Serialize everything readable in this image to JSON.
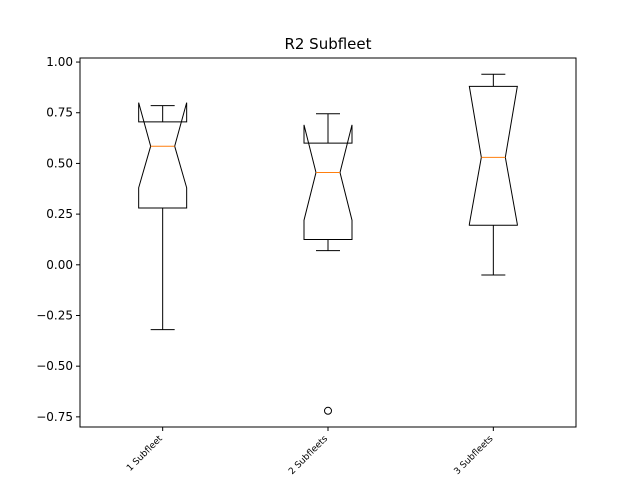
{
  "chart_data": {
    "type": "boxplot",
    "title": "R2 Subfleet",
    "xlabel": "",
    "ylabel": "",
    "notched": true,
    "ylim": [
      -0.8,
      1.02
    ],
    "yticks": [
      -0.75,
      -0.5,
      -0.25,
      0.0,
      0.25,
      0.5,
      0.75,
      1.0
    ],
    "ytick_labels": [
      "−0.75",
      "−0.50",
      "−0.25",
      "0.00",
      "0.25",
      "0.50",
      "0.75",
      "1.00"
    ],
    "categories": [
      "1 Subfleet",
      "2 Subfleets",
      "3 Subfleets"
    ],
    "boxes": [
      {
        "whisker_low": -0.32,
        "q1": 0.28,
        "median": 0.585,
        "q3": 0.705,
        "whisker_high": 0.785,
        "notch_low": 0.38,
        "notch_high": 0.8,
        "outliers": []
      },
      {
        "whisker_low": 0.07,
        "q1": 0.125,
        "median": 0.455,
        "q3": 0.6,
        "whisker_high": 0.745,
        "notch_low": 0.22,
        "notch_high": 0.69,
        "outliers": [
          -0.72
        ]
      },
      {
        "whisker_low": -0.05,
        "q1": 0.195,
        "median": 0.53,
        "q3": 0.88,
        "whisker_high": 0.94,
        "notch_low": 0.2,
        "notch_high": 0.88,
        "outliers": []
      }
    ],
    "colors": {
      "box": "#000000",
      "median": "#ff7f0e"
    },
    "grid": false,
    "legend": "none"
  }
}
